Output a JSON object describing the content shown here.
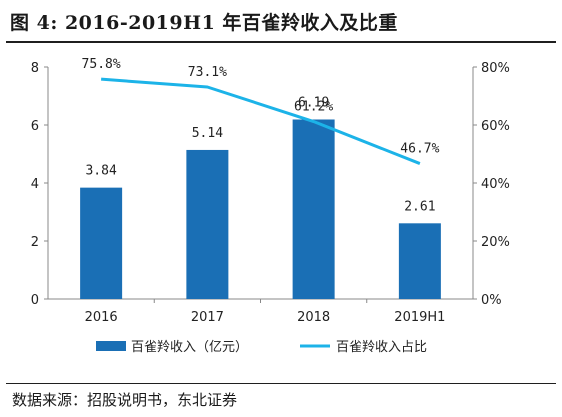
{
  "figure": {
    "title": "图 4:  2016-2019H1 年百雀羚收入及比重",
    "source": "数据来源：招股说明书，东北证券"
  },
  "chart_data": {
    "type": "bar",
    "categories": [
      "2016",
      "2017",
      "2018",
      "2019H1"
    ],
    "series": [
      {
        "name": "百雀羚收入（亿元）",
        "type": "bar",
        "axis": "left",
        "color": "#1a6fb5",
        "values": [
          3.84,
          5.14,
          6.19,
          2.61
        ],
        "labels": [
          "3.84",
          "5.14",
          "6.19",
          "2.61"
        ]
      },
      {
        "name": "百雀羚收入占比",
        "type": "line",
        "axis": "right",
        "color": "#1cb3e8",
        "values": [
          75.8,
          73.1,
          61.2,
          46.7
        ],
        "labels": [
          "75.8%",
          "73.1%",
          "61.2%",
          "46.7%"
        ]
      }
    ],
    "y_left": {
      "min": 0,
      "max": 8,
      "ticks": [
        "0",
        "2",
        "4",
        "6",
        "8"
      ]
    },
    "y_right": {
      "min": 0,
      "max": 80,
      "ticks": [
        "0%",
        "20%",
        "40%",
        "60%",
        "80%"
      ]
    },
    "grid": false,
    "legend_position": "bottom"
  }
}
